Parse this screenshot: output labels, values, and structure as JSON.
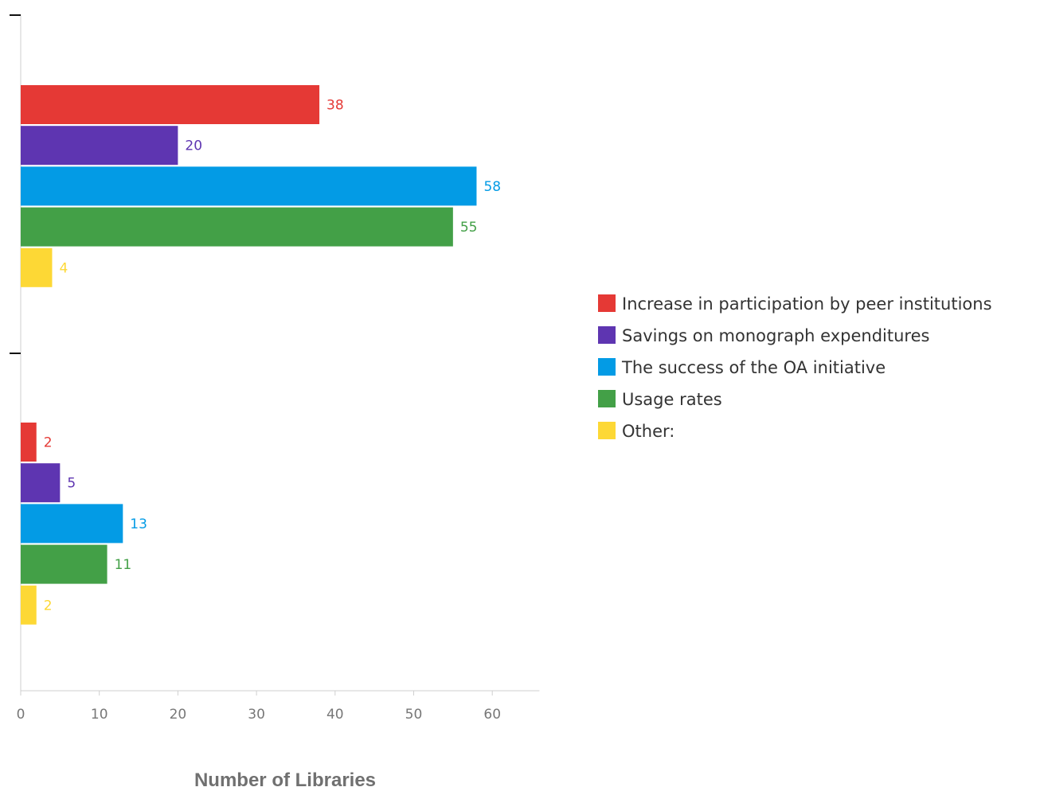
{
  "chart_data": {
    "type": "bar",
    "orientation": "horizontal",
    "title": "",
    "xlabel": "Number of Libraries",
    "ylabel": "",
    "xlim": [
      0,
      66
    ],
    "x_ticks": [
      0,
      10,
      20,
      30,
      40,
      50,
      60
    ],
    "grid": false,
    "legend_position": "right",
    "categories": [
      "",
      ""
    ],
    "series": [
      {
        "name": "Increase in participation by peer institutions",
        "color": "#e53935",
        "values": [
          38,
          2
        ]
      },
      {
        "name": "Savings on monograph expenditures",
        "color": "#5e35b1",
        "values": [
          20,
          5
        ]
      },
      {
        "name": "The success of the OA initiative",
        "color": "#039be5",
        "values": [
          58,
          13
        ]
      },
      {
        "name": "Usage rates",
        "color": "#43a047",
        "values": [
          55,
          11
        ]
      },
      {
        "name": "Other:",
        "color": "#fdd835",
        "values": [
          4,
          2
        ]
      }
    ]
  }
}
